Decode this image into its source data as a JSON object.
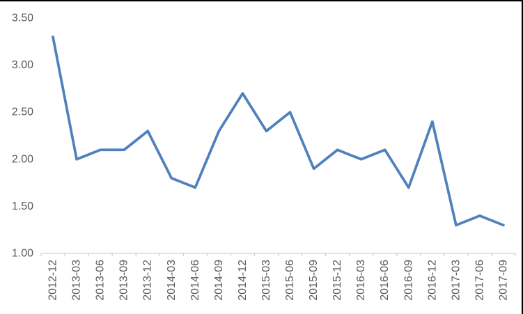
{
  "chart_data": {
    "type": "line",
    "title": "",
    "xlabel": "",
    "ylabel": "",
    "categories": [
      "2012-12",
      "2013-03",
      "2013-06",
      "2013-09",
      "2013-12",
      "2014-03",
      "2014-06",
      "2014-09",
      "2014-12",
      "2015-03",
      "2015-06",
      "2015-09",
      "2015-12",
      "2016-03",
      "2016-06",
      "2016-09",
      "2016-12",
      "2017-03",
      "2017-06",
      "2017-09"
    ],
    "values": [
      3.3,
      2.0,
      2.1,
      2.1,
      2.3,
      1.8,
      1.7,
      2.3,
      2.7,
      2.3,
      2.5,
      1.9,
      2.1,
      2.0,
      2.1,
      1.7,
      2.4,
      1.3,
      1.4,
      1.3
    ],
    "ylim": [
      1.0,
      3.5
    ],
    "y_ticks": [
      "3.50",
      "3.00",
      "2.50",
      "2.00",
      "1.50",
      "1.00"
    ],
    "grid": false,
    "legend": false,
    "x_label_rotation_degrees": 90,
    "series_color": "#4F81BD",
    "axis_line_color": "#C6C6C6",
    "label_color": "#595959"
  }
}
